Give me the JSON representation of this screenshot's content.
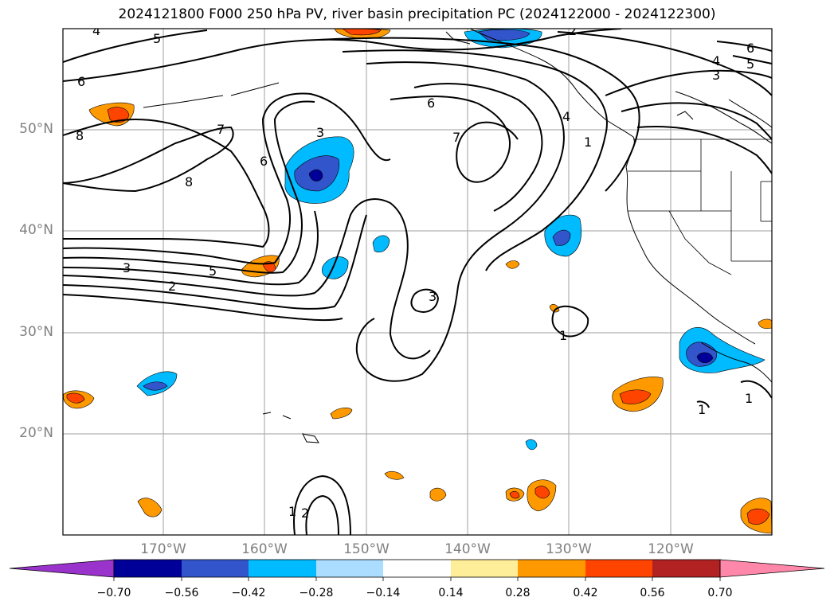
{
  "title": "2024121800 F000 250 hPa PV, river basin precipitation PC (2024122000 - 2024122300)",
  "map": {
    "lon_range": [
      -180,
      -110
    ],
    "lat_range": [
      10,
      60
    ],
    "lat_labels": [
      {
        "lat": 50,
        "label": "50°N"
      },
      {
        "lat": 40,
        "label": "40°N"
      },
      {
        "lat": 30,
        "label": "30°N"
      },
      {
        "lat": 20,
        "label": "20°N"
      }
    ],
    "lon_labels": [
      {
        "lon": -170,
        "label": "170°W"
      },
      {
        "lon": -160,
        "label": "160°W"
      },
      {
        "lon": -150,
        "label": "150°W"
      },
      {
        "lon": -140,
        "label": "140°W"
      },
      {
        "lon": -130,
        "label": "130°W"
      },
      {
        "lon": -120,
        "label": "120°W"
      }
    ],
    "contour_labels": [
      "4",
      "5",
      "6",
      "8",
      "7",
      "8",
      "6",
      "3",
      "2",
      "5",
      "3",
      "6",
      "7",
      "2",
      "4",
      "1",
      "5",
      "4",
      "3",
      "1",
      "1",
      "1",
      "1",
      "2"
    ]
  },
  "colorbar": {
    "colors": [
      "#9933cc",
      "#000099",
      "#3355cc",
      "#00bbff",
      "#aaddff",
      "#ffffff",
      "#ffee99",
      "#ff9900",
      "#ff4400",
      "#b22222",
      "#ff88aa"
    ],
    "ticks": [
      "−0.70",
      "−0.56",
      "−0.42",
      "−0.28",
      "−0.14",
      "0.14",
      "0.28",
      "0.42",
      "0.56",
      "0.70"
    ]
  },
  "precip_colors": {
    "positive_light": "#ffee99",
    "positive_mid": "#ff9900",
    "positive_high": "#ff4400",
    "negative_light": "#aaddff",
    "negative_mid": "#00bbff",
    "negative_high": "#3355cc",
    "negative_max": "#000099"
  }
}
